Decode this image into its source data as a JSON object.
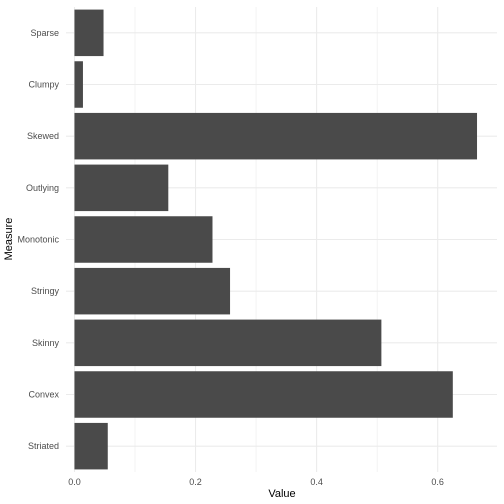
{
  "chart_data": {
    "type": "bar",
    "orientation": "horizontal",
    "categories": [
      "Sparse",
      "Clumpy",
      "Skewed",
      "Outlying",
      "Monotonic",
      "Stringy",
      "Skinny",
      "Convex",
      "Striated"
    ],
    "values": [
      0.048,
      0.014,
      0.665,
      0.155,
      0.228,
      0.257,
      0.507,
      0.625,
      0.055
    ],
    "xlabel": "Value",
    "ylabel": "Measure",
    "xlim": [
      -0.014,
      0.698
    ],
    "x_ticks": [
      0.0,
      0.2,
      0.4,
      0.6
    ],
    "x_tick_labels": [
      "0.0",
      "0.2",
      "0.4",
      "0.6"
    ],
    "grid": true,
    "bar_color": "#4a4a4a",
    "grid_color": "#ebebeb"
  }
}
